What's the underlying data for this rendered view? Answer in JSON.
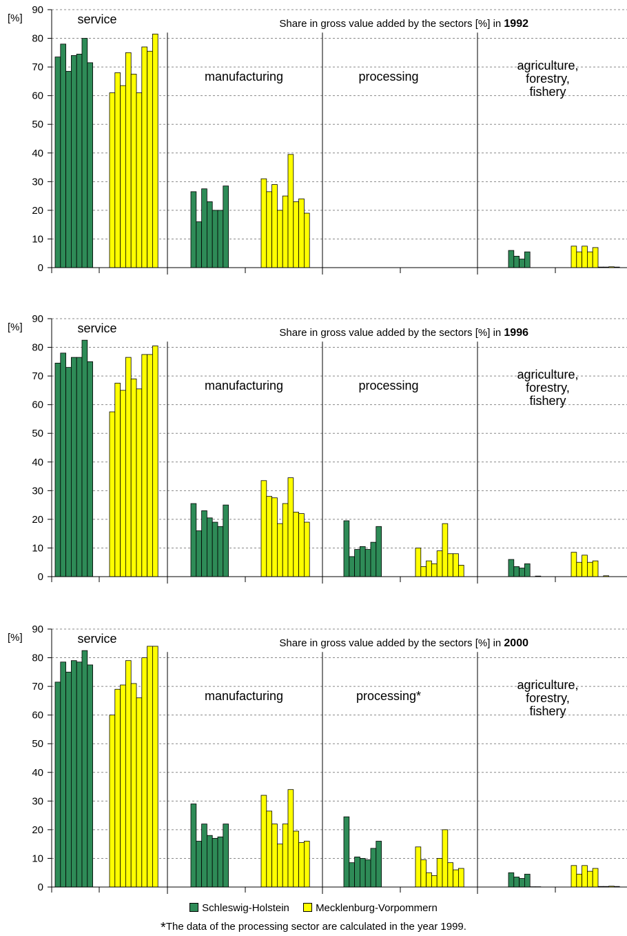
{
  "legend": [
    {
      "label": "Schleswig-Holstein",
      "color": "#2e8b57"
    },
    {
      "label": "Mecklenburg-Vorpommern",
      "color": "#ffff00"
    }
  ],
  "footnote": {
    "marker": "*",
    "text": "The data of the processing sector are calculated in the year 1999."
  },
  "chart_data": [
    {
      "type": "bar",
      "title_prefix": "Share in gross value added by the sectors [%] in ",
      "year": "1992",
      "ylabel": "[%]",
      "ylim": [
        0,
        90
      ],
      "yticks": [
        0,
        10,
        20,
        30,
        40,
        50,
        60,
        70,
        80,
        90
      ],
      "grid": "dashed",
      "sectors": [
        {
          "label": "service",
          "sh": [
            73.5,
            78,
            68.5,
            74,
            74.5,
            80,
            71.5
          ],
          "mv": [
            61,
            68,
            63.5,
            75,
            67.5,
            61,
            77,
            75.5,
            81.5
          ]
        },
        {
          "label": "manufacturing",
          "sh": [
            26.5,
            16,
            27.5,
            23,
            20,
            20,
            28.5
          ],
          "mv": [
            31,
            26.5,
            29,
            20,
            25,
            39.5,
            23,
            24,
            19
          ]
        },
        {
          "label": "processing",
          "sh": [],
          "mv": []
        },
        {
          "label": "agriculture,\nforestry,\nfishery",
          "sh": [
            6,
            4,
            3,
            5.5
          ],
          "mv": [
            7.5,
            5.5,
            7.5,
            5.5,
            7,
            0.2,
            0.2,
            0.3,
            0.2
          ]
        }
      ]
    },
    {
      "type": "bar",
      "title_prefix": "Share in gross value added by the sectors [%] in ",
      "year": "1996",
      "ylabel": "[%]",
      "ylim": [
        0,
        90
      ],
      "yticks": [
        0,
        10,
        20,
        30,
        40,
        50,
        60,
        70,
        80,
        90
      ],
      "grid": "dashed",
      "sectors": [
        {
          "label": "service",
          "sh": [
            74.5,
            78,
            73,
            76.5,
            76.5,
            82.5,
            75
          ],
          "mv": [
            57.5,
            67.5,
            65,
            76.5,
            69,
            65.5,
            77.5,
            77.5,
            80.5
          ]
        },
        {
          "label": "manufacturing",
          "sh": [
            25.5,
            16,
            23,
            20.5,
            19,
            17.5,
            25
          ],
          "mv": [
            33.5,
            28,
            27.5,
            18.5,
            25.5,
            34.5,
            22.5,
            22,
            19
          ]
        },
        {
          "label": "processing",
          "sh": [
            19.5,
            7,
            9.5,
            10.5,
            9.5,
            12,
            17.5
          ],
          "mv": [
            10,
            3.5,
            5.5,
            4.5,
            9,
            18.5,
            8,
            8,
            4
          ]
        },
        {
          "label": "agriculture,\nforestry,\nfishery",
          "sh": [
            6,
            3.5,
            3,
            4.5,
            0,
            0.2
          ],
          "mv": [
            8.5,
            5,
            7.5,
            5,
            5.5,
            0,
            0.3
          ]
        }
      ]
    },
    {
      "type": "bar",
      "title_prefix": "Share in gross value added by the sectors [%] in ",
      "year": "2000",
      "ylabel": "[%]",
      "ylim": [
        0,
        90
      ],
      "yticks": [
        0,
        10,
        20,
        30,
        40,
        50,
        60,
        70,
        80,
        90
      ],
      "grid": "dashed",
      "sectors": [
        {
          "label": "service",
          "sh": [
            71.5,
            78.5,
            75,
            79,
            78.5,
            82.5,
            77.5
          ],
          "mv": [
            60,
            69,
            70.5,
            79,
            71,
            66,
            80,
            84,
            84
          ]
        },
        {
          "label": "manufacturing",
          "sh": [
            29,
            16,
            22,
            18,
            17,
            17.5,
            22
          ],
          "mv": [
            32,
            26.5,
            22,
            15,
            22,
            34,
            19.5,
            15.5,
            16
          ]
        },
        {
          "label": "processing*",
          "sh": [
            24.5,
            8.5,
            10.5,
            10,
            9.5,
            13.5,
            16
          ],
          "mv": [
            14,
            9.5,
            5,
            4,
            10,
            20,
            8.5,
            6,
            6.5
          ]
        },
        {
          "label": "agriculture,\nforestry,\nfishery",
          "sh": [
            5,
            3.5,
            3,
            4.5,
            0.1,
            0.1
          ],
          "mv": [
            7.5,
            4.5,
            7.5,
            5.5,
            6.5,
            0.2,
            0.2,
            0.3,
            0.2
          ]
        }
      ]
    }
  ]
}
